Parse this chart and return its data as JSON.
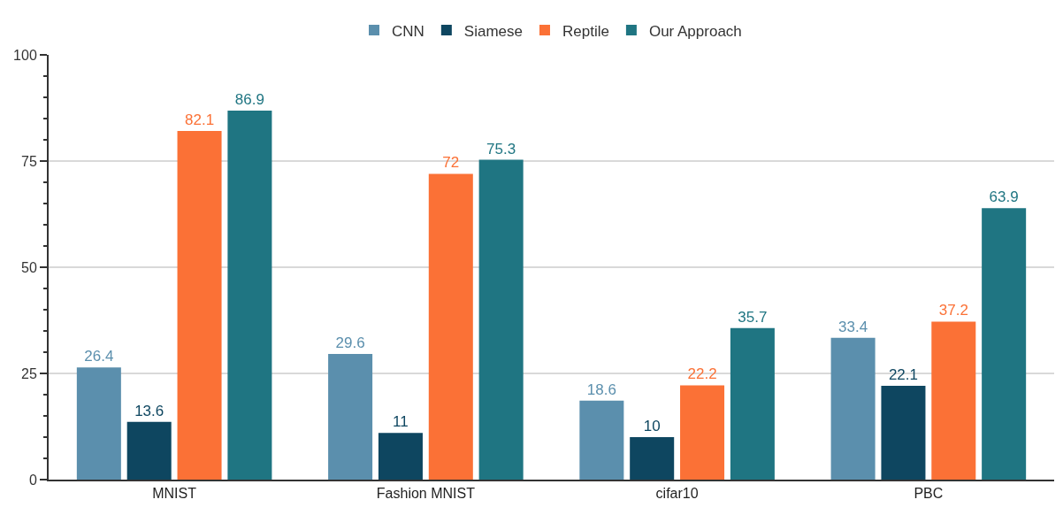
{
  "chart_data": {
    "type": "bar",
    "categories": [
      "MNIST",
      "Fashion MNIST",
      "cifar10",
      "PBC"
    ],
    "series": [
      {
        "name": "CNN",
        "color": "#5b8fad",
        "values": [
          26.4,
          29.6,
          18.6,
          33.4
        ]
      },
      {
        "name": "Siamese",
        "color": "#0e4660",
        "values": [
          13.6,
          11,
          10,
          22.1
        ]
      },
      {
        "name": "Reptile",
        "color": "#fb7136",
        "values": [
          82.1,
          72,
          22.2,
          37.2
        ]
      },
      {
        "name": "Our Approach",
        "color": "#1f7582",
        "values": [
          86.9,
          75.3,
          35.7,
          63.9
        ]
      }
    ],
    "ylim": [
      0,
      100
    ],
    "yticks": [
      0,
      {
        "value": 5,
        "label": null
      },
      {
        "value": 10,
        "label": null
      },
      {
        "value": 15,
        "label": null
      },
      {
        "value": 20,
        "label": null
      },
      25,
      {
        "value": 30,
        "label": null
      },
      {
        "value": 35,
        "label": null
      },
      {
        "value": 40,
        "label": null
      },
      {
        "value": 45,
        "label": null
      },
      50,
      {
        "value": 55,
        "label": null
      },
      {
        "value": 60,
        "label": null
      },
      {
        "value": 65,
        "label": null
      },
      {
        "value": 70,
        "label": null
      },
      75,
      {
        "value": 80,
        "label": null
      },
      {
        "value": 85,
        "label": null
      },
      {
        "value": 90,
        "label": null
      },
      {
        "value": 95,
        "label": null
      },
      100
    ],
    "grid": "y",
    "legend": "top",
    "data_labels": true
  }
}
